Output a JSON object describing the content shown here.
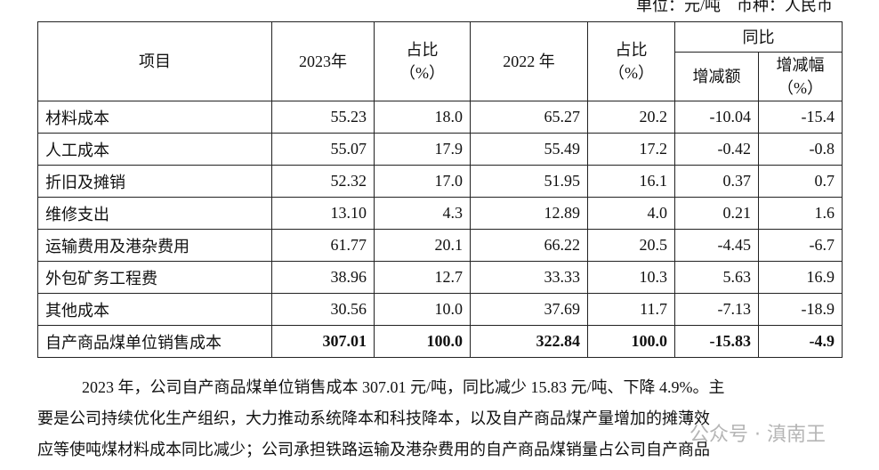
{
  "unit_note": "单位：元/吨　币种：人民币",
  "table": {
    "header": {
      "item": "项目",
      "y2023": "2023年",
      "share2023": "占比\n（%）",
      "y2022": "2022 年",
      "share2022": "占比\n（%）",
      "yoy": "同比",
      "change": "增减额",
      "change_pct": "增减幅\n（%）"
    },
    "rows": [
      [
        "材料成本",
        "55.23",
        "18.0",
        "65.27",
        "20.2",
        "-10.04",
        "-15.4"
      ],
      [
        "人工成本",
        "55.07",
        "17.9",
        "55.49",
        "17.2",
        "-0.42",
        "-0.8"
      ],
      [
        "折旧及摊销",
        "52.32",
        "17.0",
        "51.95",
        "16.1",
        "0.37",
        "0.7"
      ],
      [
        "维修支出",
        "13.10",
        "4.3",
        "12.89",
        "4.0",
        "0.21",
        "1.6"
      ],
      [
        "运输费用及港杂费用",
        "61.77",
        "20.1",
        "66.22",
        "20.5",
        "-4.45",
        "-6.7"
      ],
      [
        "外包矿务工程费",
        "38.96",
        "12.7",
        "33.33",
        "10.3",
        "5.63",
        "16.9"
      ],
      [
        "其他成本",
        "30.56",
        "10.0",
        "37.69",
        "11.7",
        "-7.13",
        "-18.9"
      ],
      [
        "自产商品煤单位销售成本",
        "307.01",
        "100.0",
        "322.84",
        "100.0",
        "-15.83",
        "-4.9"
      ]
    ]
  },
  "paragraph": {
    "lines": [
      "2023 年，公司自产商品煤单位销售成本 307.01 元/吨，同比减少 15.83 元/吨、下降 4.9%。主",
      "要是公司持续优化生产组织，大力推动系统降本和科技降本，以及自产商品煤产量增加的摊薄效",
      "应等使吨煤材料成本同比减少；公司承担铁路运输及港杂费用的自产商品煤销量占公司自产商品"
    ]
  },
  "watermark": "公众号 · 滇南王"
}
